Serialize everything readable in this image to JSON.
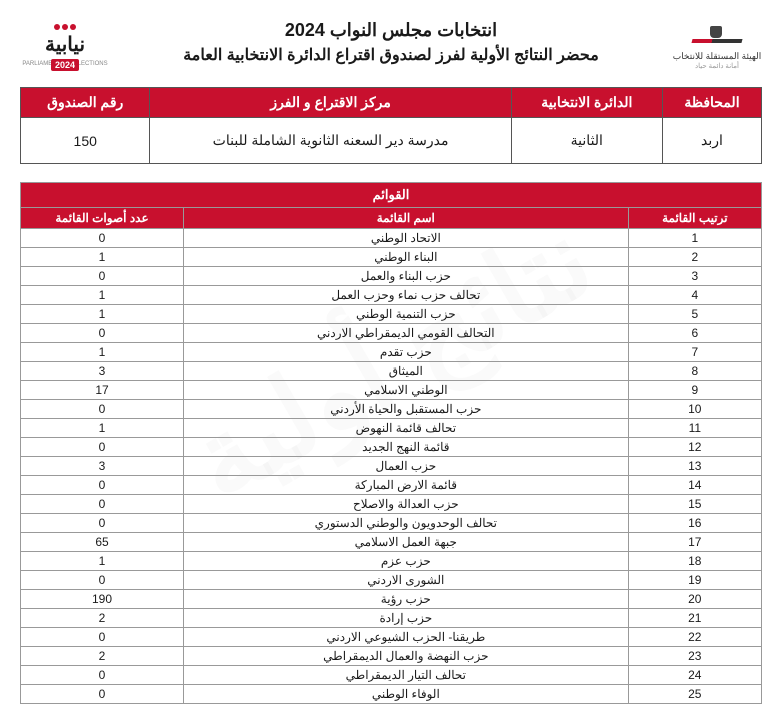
{
  "header": {
    "title_main": "انتخابات مجلس النواب 2024",
    "title_sub": "محضر النتائج الأولية لفرز لصندوق اقتراع الدائرة الانتخابية العامة",
    "logo_right_text": "الهيئة المستقلة للانتخاب",
    "logo_right_sub": "أمانة دائمة حياد",
    "logo_left_text": "نيابية",
    "logo_left_year": "2024",
    "logo_left_sub": "PARLIAMENTARY ELECTIONS"
  },
  "info": {
    "headers": {
      "governorate": "المحافظة",
      "district": "الدائرة الانتخابية",
      "center": "مركز الاقتراع و الفرز",
      "box": "رقم الصندوق"
    },
    "values": {
      "governorate": "اربد",
      "district": "الثانية",
      "center": "مدرسة دير السعنه الثانوية الشاملة للبنات",
      "box": "150"
    }
  },
  "lists": {
    "section_title": "القوائم",
    "headers": {
      "rank": "ترتيب القائمة",
      "name": "اسم القائمة",
      "votes": "عدد أصوات القائمة"
    },
    "rows": [
      {
        "rank": "1",
        "name": "الاتحاد الوطني",
        "votes": "0"
      },
      {
        "rank": "2",
        "name": "البناء الوطني",
        "votes": "1"
      },
      {
        "rank": "3",
        "name": "حزب البناء والعمل",
        "votes": "0"
      },
      {
        "rank": "4",
        "name": "تحالف حزب نماء وحزب العمل",
        "votes": "1"
      },
      {
        "rank": "5",
        "name": "حزب التنمية الوطني",
        "votes": "1"
      },
      {
        "rank": "6",
        "name": "التحالف القومي الديمقراطي الاردني",
        "votes": "0"
      },
      {
        "rank": "7",
        "name": "حزب تقدم",
        "votes": "1"
      },
      {
        "rank": "8",
        "name": "الميثاق",
        "votes": "3"
      },
      {
        "rank": "9",
        "name": "الوطني الاسلامي",
        "votes": "17"
      },
      {
        "rank": "10",
        "name": "حزب المستقبل والحياة الأردني",
        "votes": "0"
      },
      {
        "rank": "11",
        "name": "تحالف قائمة النهوض",
        "votes": "1"
      },
      {
        "rank": "12",
        "name": "قائمة النهج الجديد",
        "votes": "0"
      },
      {
        "rank": "13",
        "name": "حزب العمال",
        "votes": "3"
      },
      {
        "rank": "14",
        "name": "قائمة الارض المباركة",
        "votes": "0"
      },
      {
        "rank": "15",
        "name": "حزب العدالة والاصلاح",
        "votes": "0"
      },
      {
        "rank": "16",
        "name": "تحالف الوحدويون والوطني الدستوري",
        "votes": "0"
      },
      {
        "rank": "17",
        "name": "جبهة العمل الاسلامي",
        "votes": "65"
      },
      {
        "rank": "18",
        "name": "حزب عزم",
        "votes": "1"
      },
      {
        "rank": "19",
        "name": "الشورى الاردني",
        "votes": "0"
      },
      {
        "rank": "20",
        "name": "حزب رؤية",
        "votes": "190"
      },
      {
        "rank": "21",
        "name": "حزب إرادة",
        "votes": "2"
      },
      {
        "rank": "22",
        "name": "طريقنا- الحزب الشيوعي الاردني",
        "votes": "0"
      },
      {
        "rank": "23",
        "name": "حزب النهضة والعمال الديمقراطي",
        "votes": "2"
      },
      {
        "rank": "24",
        "name": "تحالف التيار الديمقراطي",
        "votes": "0"
      },
      {
        "rank": "25",
        "name": "الوفاء الوطني",
        "votes": "0"
      }
    ]
  },
  "watermark": "نتائج أولية",
  "colors": {
    "brand_red": "#c8102e",
    "text": "#1a1a1a",
    "border_dark": "#555555",
    "border_light": "#999999",
    "background": "#ffffff"
  }
}
